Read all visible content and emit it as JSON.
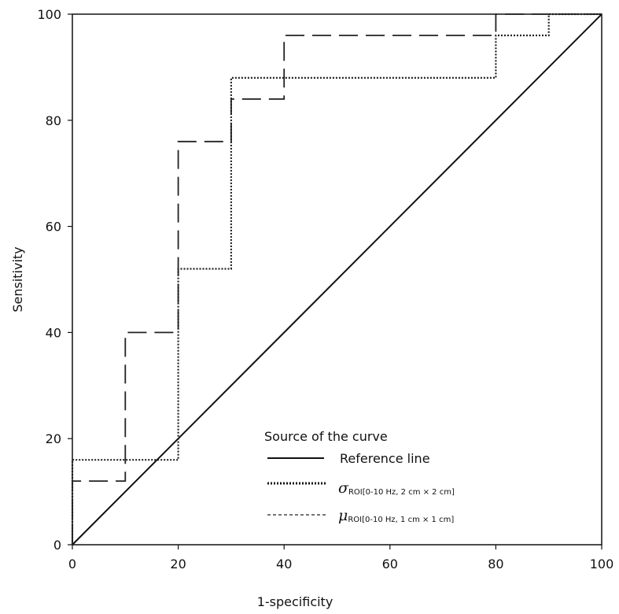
{
  "chart_data": {
    "type": "line",
    "xlabel": "1-specificity",
    "ylabel": "Sensitivity",
    "xlim": [
      0,
      100
    ],
    "ylim": [
      0,
      100
    ],
    "xticks": [
      "0",
      "20",
      "40",
      "60",
      "80",
      "100"
    ],
    "yticks": [
      "0",
      "20",
      "40",
      "60",
      "80",
      "100"
    ],
    "grid": false,
    "legend_title": "Source of the curve",
    "legend_position": "bottom-right",
    "series": [
      {
        "name": "Reference line",
        "style": "solid",
        "color": "#111111",
        "x": [
          0,
          100
        ],
        "y": [
          0,
          100
        ]
      },
      {
        "name_symbol": "σ",
        "name_subscript": "ROI[0-10 Hz, 2 cm × 2 cm]",
        "style": "dotted",
        "color": "#222222",
        "x": [
          0,
          0,
          20,
          20,
          30,
          30,
          80,
          80,
          90,
          90,
          100
        ],
        "y": [
          0,
          16,
          16,
          52,
          52,
          88,
          88,
          96,
          96,
          100,
          100
        ]
      },
      {
        "name_symbol": "μ",
        "name_subscript": "ROI[0-10 Hz, 1 cm × 1 cm]",
        "style": "dashed",
        "color": "#222222",
        "x": [
          0,
          0,
          10,
          10,
          20,
          20,
          30,
          30,
          40,
          40,
          80,
          80,
          100
        ],
        "y": [
          0,
          12,
          12,
          40,
          40,
          76,
          76,
          84,
          84,
          96,
          96,
          100,
          100
        ]
      }
    ]
  }
}
